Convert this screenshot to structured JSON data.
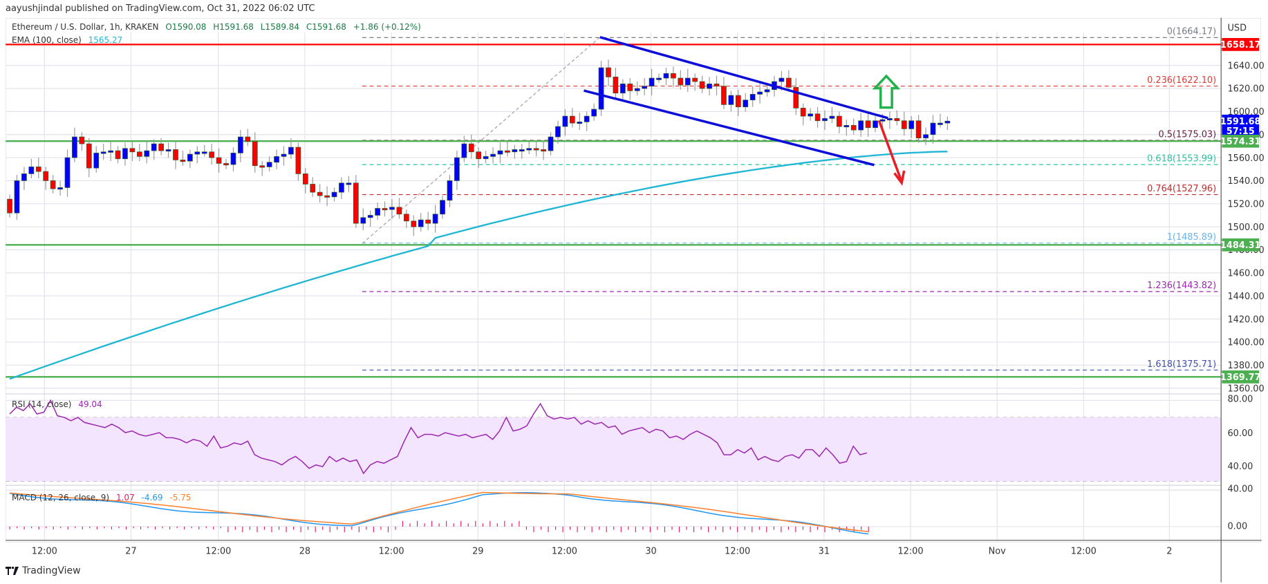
{
  "header": {
    "published": "aayushjindal published on TradingView.com, Oct 31, 2022 06:02 UTC"
  },
  "legend": {
    "symbol": "Ethereum / U.S. Dollar, 1h, KRAKEN",
    "open": "O1590.08",
    "high": "H1591.68",
    "low": "L1589.84",
    "close": "C1591.68",
    "change": "+1.86 (+0.12%)",
    "ema_label": "EMA (100, close)",
    "ema_value": "1565.27",
    "rsi_label": "RSI (14, close)",
    "rsi_value": "49.04",
    "macd_label": "MACD (12, 26, close, 9)",
    "macd_hist": "1.07",
    "macd_line": "-4.69",
    "macd_signal": "-5.75"
  },
  "price_axis": {
    "currency": "USD",
    "ticks": [
      "1640.00",
      "1620.00",
      "1600.00",
      "1580.00",
      "1560.00",
      "1540.00",
      "1520.00",
      "1500.00",
      "1480.00",
      "1460.00",
      "1440.00",
      "1420.00",
      "1400.00",
      "1380.00",
      "1360.00"
    ],
    "badges": {
      "resistance": "1658.17",
      "last_price": "1591.68",
      "countdown": "57:15",
      "support_1": "1574.31",
      "support_2": "1484.31",
      "support_3": "1369.77"
    }
  },
  "rsi_axis": {
    "ticks": [
      "80.00",
      "60.00",
      "40.00"
    ]
  },
  "macd_axis": {
    "ticks": [
      "40.00",
      "0.00"
    ]
  },
  "time_axis": {
    "labels": [
      "12:00",
      "27",
      "12:00",
      "28",
      "12:00",
      "29",
      "12:00",
      "30",
      "12:00",
      "31",
      "12:00",
      "Nov",
      "12:00",
      "2"
    ]
  },
  "fib_levels": [
    {
      "label": "0(1664.17)",
      "price": 1664.17,
      "color": "#787b86"
    },
    {
      "label": "0.236(1622.10)",
      "price": 1622.1,
      "color": "#e53935"
    },
    {
      "label": "0.5(1575.03)",
      "price": 1575.03,
      "color": "#6d1b3f"
    },
    {
      "label": "0.618(1553.99)",
      "price": 1553.99,
      "color": "#26c6a0"
    },
    {
      "label": "0.764(1527.96)",
      "price": 1527.96,
      "color": "#c62828"
    },
    {
      "label": "1(1485.89)",
      "price": 1485.89,
      "color": "#64b5f6"
    },
    {
      "label": "1.236(1443.82)",
      "price": 1443.82,
      "color": "#9c27b0"
    },
    {
      "label": "1.618(1375.71)",
      "price": 1375.71,
      "color": "#3f51b5"
    }
  ],
  "colors": {
    "up_candle": "#0000ff",
    "down_candle": "#ff0000",
    "ema": "#1fb6d4",
    "resistance_line": "#ff0000",
    "support_line": "#4caf50",
    "channel": "#0d0dd9",
    "rsi": "#9c27b0",
    "rsi_band": "#f3e5fd",
    "macd": "#2196f3",
    "signal": "#ff7f2a",
    "hist": "#e91e63",
    "last_price_bg": "#0000ff"
  },
  "footer": {
    "brand": "TradingView"
  },
  "chart_data": {
    "type": "candlestick",
    "title": "Ethereum / U.S. Dollar, 1h, KRAKEN",
    "ylabel": "USD",
    "ylim": [
      1350,
      1670
    ],
    "grid": true,
    "interval": "1h",
    "ohlc_last": {
      "open": 1590.08,
      "high": 1591.68,
      "low": 1589.84,
      "close": 1591.68
    },
    "closes": [
      1512,
      1540,
      1546,
      1552,
      1548,
      1540,
      1533,
      1534,
      1560,
      1578,
      1572,
      1551,
      1564,
      1565,
      1566,
      1559,
      1568,
      1565,
      1561,
      1566,
      1572,
      1566,
      1567,
      1558,
      1557,
      1563,
      1565,
      1565,
      1560,
      1555,
      1554,
      1564,
      1578,
      1574,
      1553,
      1552,
      1556,
      1561,
      1563,
      1569,
      1546,
      1537,
      1530,
      1527,
      1526,
      1530,
      1538,
      1538,
      1503,
      1508,
      1510,
      1516,
      1515,
      1517,
      1511,
      1505,
      1500,
      1506,
      1503,
      1511,
      1523,
      1540,
      1560,
      1572,
      1565,
      1559,
      1561,
      1563,
      1566,
      1565,
      1567,
      1567,
      1568,
      1567,
      1566,
      1578,
      1587,
      1596,
      1590,
      1591,
      1596,
      1602,
      1638,
      1630,
      1616,
      1624,
      1618,
      1620,
      1622,
      1629,
      1629,
      1633,
      1629,
      1623,
      1629,
      1626,
      1620,
      1624,
      1622,
      1606,
      1614,
      1604,
      1610,
      1615,
      1617,
      1619,
      1626,
      1629,
      1621,
      1603,
      1596,
      1598,
      1592,
      1594,
      1596,
      1587,
      1588,
      1584,
      1592,
      1586,
      1592,
      1593,
      1594,
      1592,
      1585,
      1592,
      1577,
      1580,
      1590,
      1590,
      1591.68
    ],
    "ema100": {
      "start": 1368,
      "end": 1565.27,
      "last": 1565.27
    },
    "horizontal_lines": [
      {
        "price": 1658.17,
        "color": "red",
        "role": "resistance"
      },
      {
        "price": 1574.31,
        "color": "green",
        "role": "support"
      },
      {
        "price": 1484.31,
        "color": "green",
        "role": "support"
      },
      {
        "price": 1369.77,
        "color": "green",
        "role": "support"
      }
    ],
    "channel": {
      "upper": [
        {
          "time": "Oct 29 14:00",
          "price": 1664
        },
        {
          "time": "Oct 31 08:00",
          "price": 1598
        }
      ],
      "lower": [
        {
          "time": "Oct 29 12:00",
          "price": 1617
        },
        {
          "time": "Oct 31 08:00",
          "price": 1555
        }
      ]
    },
    "annotations": [
      "green up arrow (breakout above channel)",
      "red down arrow (breakdown toward 1530)"
    ],
    "fibonacci_retracement": {
      "from": 1485.89,
      "to": 1664.17
    },
    "rsi": {
      "period": 14,
      "value": 49.04,
      "band": [
        30,
        70
      ],
      "ylim": [
        20,
        80
      ],
      "values": [
        72,
        76,
        74,
        78,
        72,
        73,
        80,
        71,
        70,
        68,
        70,
        67,
        66,
        65,
        64,
        66,
        64,
        61,
        62,
        60,
        59,
        60,
        61,
        58,
        58,
        57,
        55,
        57,
        56,
        53,
        59,
        52,
        53,
        55,
        54,
        56,
        48,
        46,
        45,
        44,
        42,
        45,
        47,
        44,
        40,
        42,
        41,
        47,
        44,
        46,
        44,
        45,
        37,
        42,
        44,
        43,
        45,
        47,
        56,
        64,
        58,
        60,
        60,
        59,
        61,
        60,
        59,
        60,
        58,
        59,
        60,
        57,
        62,
        70,
        62,
        63,
        65,
        72,
        78,
        71,
        69,
        70,
        69,
        70,
        66,
        68,
        66,
        67,
        64,
        65,
        60,
        62,
        63,
        64,
        61,
        63,
        62,
        58,
        59,
        57,
        60,
        62,
        60,
        58,
        55,
        48,
        48,
        51,
        49,
        52,
        45,
        47,
        45,
        44,
        47,
        48,
        46,
        51,
        51,
        47,
        52,
        48,
        43,
        44,
        53,
        48,
        49.04
      ]
    },
    "macd": {
      "params": [
        12,
        26,
        9
      ],
      "macd": -4.69,
      "signal": -5.75,
      "histogram": 1.07
    }
  }
}
